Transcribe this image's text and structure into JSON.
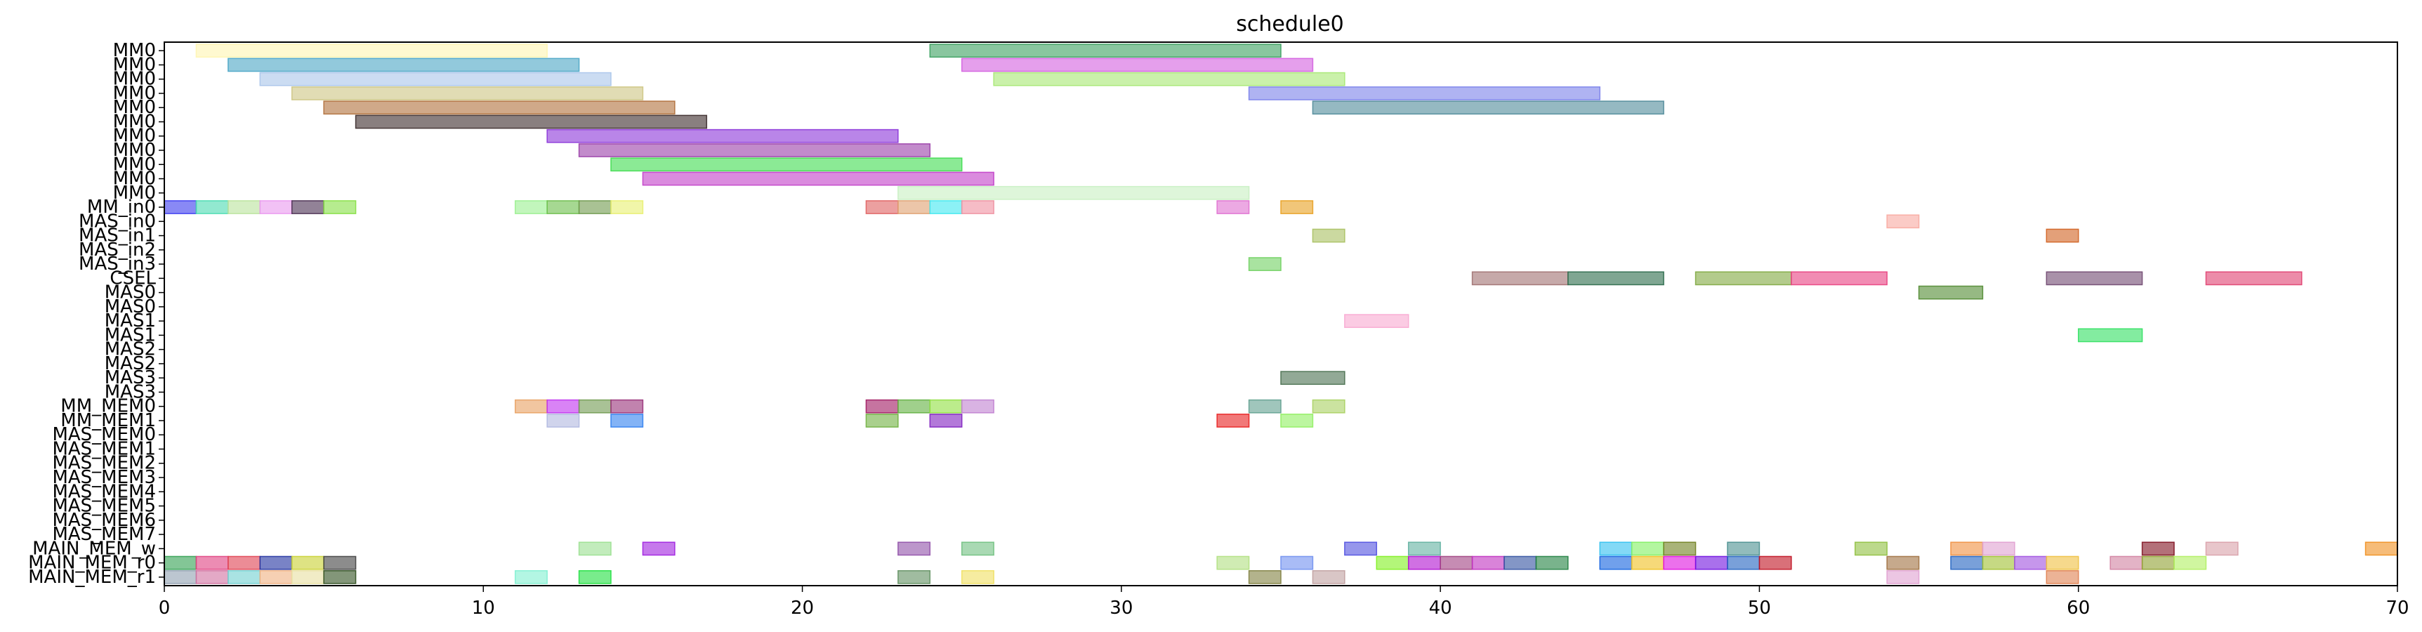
{
  "chart_data": {
    "type": "gantt",
    "title": "schedule0",
    "xlabel": "",
    "ylabel": "",
    "xlim": [
      0,
      70
    ],
    "xticks": [
      0,
      10,
      20,
      30,
      40,
      50,
      60,
      70
    ],
    "grid": false,
    "rows": [
      "MM0",
      "MM0",
      "MM0",
      "MM0",
      "MM0",
      "MM0",
      "MM0",
      "MM0",
      "MM0",
      "MM0",
      "MM0",
      "MM_in0",
      "MAS_in0",
      "MAS_in1",
      "MAS_in2",
      "MAS_in3",
      "CSEL",
      "MAS0",
      "MAS0",
      "MAS1",
      "MAS1",
      "MAS2",
      "MAS2",
      "MAS3",
      "MAS3",
      "MM_MEM0",
      "MM_MEM1",
      "MAS_MEM0",
      "MAS_MEM1",
      "MAS_MEM2",
      "MAS_MEM3",
      "MAS_MEM4",
      "MAS_MEM5",
      "MAS_MEM6",
      "MAS_MEM7",
      "MAIN_MEM_w",
      "MAIN_MEM_r0",
      "MAIN_MEM_r1"
    ],
    "tasks": [
      {
        "row": 0,
        "start": 1,
        "end": 12,
        "color": "#fff5b0"
      },
      {
        "row": 0,
        "start": 24,
        "end": 35,
        "color": "#3aa05f"
      },
      {
        "row": 1,
        "start": 2,
        "end": 13,
        "color": "#4aa5c5"
      },
      {
        "row": 1,
        "start": 25,
        "end": 36,
        "color": "#d35fe0"
      },
      {
        "row": 2,
        "start": 3,
        "end": 14,
        "color": "#a9c4ea"
      },
      {
        "row": 2,
        "start": 26,
        "end": 37,
        "color": "#a6e872"
      },
      {
        "row": 3,
        "start": 4,
        "end": 15,
        "color": "#cdc582"
      },
      {
        "row": 3,
        "start": 34,
        "end": 45,
        "color": "#7a81ea"
      },
      {
        "row": 4,
        "start": 5,
        "end": 16,
        "color": "#b06f3a"
      },
      {
        "row": 4,
        "start": 36,
        "end": 47,
        "color": "#4f8a99"
      },
      {
        "row": 5,
        "start": 6,
        "end": 17,
        "color": "#3a2a2a"
      },
      {
        "row": 6,
        "start": 12,
        "end": 23,
        "color": "#8a33d8"
      },
      {
        "row": 7,
        "start": 13,
        "end": 24,
        "color": "#9a3ea8"
      },
      {
        "row": 8,
        "start": 14,
        "end": 25,
        "color": "#3edc4e"
      },
      {
        "row": 9,
        "start": 15,
        "end": 26,
        "color": "#c13ec8"
      },
      {
        "row": 10,
        "start": 23,
        "end": 34,
        "color": "#c8f0c2"
      },
      {
        "row": 11,
        "start": 0,
        "end": 1,
        "color": "#3b3bef"
      },
      {
        "row": 11,
        "start": 1,
        "end": 2,
        "color": "#49dbb0"
      },
      {
        "row": 11,
        "start": 2,
        "end": 3,
        "color": "#b9e39b"
      },
      {
        "row": 11,
        "start": 3,
        "end": 4,
        "color": "#ea97ef"
      },
      {
        "row": 11,
        "start": 4,
        "end": 5,
        "color": "#4a2f52"
      },
      {
        "row": 11,
        "start": 5,
        "end": 6,
        "color": "#86e044"
      },
      {
        "row": 11,
        "start": 11,
        "end": 12,
        "color": "#9af08f"
      },
      {
        "row": 11,
        "start": 12,
        "end": 13,
        "color": "#6bbe4a"
      },
      {
        "row": 11,
        "start": 13,
        "end": 14,
        "color": "#6f9a4c"
      },
      {
        "row": 11,
        "start": 14,
        "end": 15,
        "color": "#e8f06f"
      },
      {
        "row": 11,
        "start": 22,
        "end": 23,
        "color": "#e06060"
      },
      {
        "row": 11,
        "start": 23,
        "end": 24,
        "color": "#e0a070"
      },
      {
        "row": 11,
        "start": 24,
        "end": 25,
        "color": "#40e8f0"
      },
      {
        "row": 11,
        "start": 25,
        "end": 26,
        "color": "#f090a0"
      },
      {
        "row": 11,
        "start": 33,
        "end": 34,
        "color": "#e070d0"
      },
      {
        "row": 11,
        "start": 35,
        "end": 36,
        "color": "#e8a020"
      },
      {
        "row": 12,
        "start": 54,
        "end": 55,
        "color": "#f8a8a0"
      },
      {
        "row": 13,
        "start": 36,
        "end": 37,
        "color": "#a8c060"
      },
      {
        "row": 13,
        "start": 59,
        "end": 60,
        "color": "#d06020"
      },
      {
        "row": 15,
        "start": 34,
        "end": 35,
        "color": "#70d060"
      },
      {
        "row": 16,
        "start": 41,
        "end": 44,
        "color": "#a07070"
      },
      {
        "row": 16,
        "start": 44,
        "end": 47,
        "color": "#2a6a4a"
      },
      {
        "row": 16,
        "start": 48,
        "end": 51,
        "color": "#80a840"
      },
      {
        "row": 16,
        "start": 51,
        "end": 54,
        "color": "#e84080"
      },
      {
        "row": 16,
        "start": 59,
        "end": 62,
        "color": "#704870"
      },
      {
        "row": 16,
        "start": 64,
        "end": 67,
        "color": "#e04070"
      },
      {
        "row": 17,
        "start": 55,
        "end": 57,
        "color": "#508a30"
      },
      {
        "row": 19,
        "start": 37,
        "end": 39,
        "color": "#f8a8d0"
      },
      {
        "row": 20,
        "start": 60,
        "end": 62,
        "color": "#30e060"
      },
      {
        "row": 23,
        "start": 35,
        "end": 37,
        "color": "#4a7050"
      },
      {
        "row": 25,
        "start": 11,
        "end": 12,
        "color": "#e8a060"
      },
      {
        "row": 25,
        "start": 12,
        "end": 13,
        "color": "#c030f0"
      },
      {
        "row": 25,
        "start": 13,
        "end": 14,
        "color": "#709a50"
      },
      {
        "row": 25,
        "start": 14,
        "end": 15,
        "color": "#983078"
      },
      {
        "row": 25,
        "start": 22,
        "end": 23,
        "color": "#a01860"
      },
      {
        "row": 25,
        "start": 23,
        "end": 24,
        "color": "#60b040"
      },
      {
        "row": 25,
        "start": 24,
        "end": 25,
        "color": "#90e040"
      },
      {
        "row": 25,
        "start": 25,
        "end": 26,
        "color": "#c080d0"
      },
      {
        "row": 25,
        "start": 34,
        "end": 35,
        "color": "#60a090"
      },
      {
        "row": 25,
        "start": 36,
        "end": 37,
        "color": "#a8d060"
      },
      {
        "row": 26,
        "start": 12,
        "end": 13,
        "color": "#b0b8e0"
      },
      {
        "row": 26,
        "start": 14,
        "end": 15,
        "color": "#3080f0"
      },
      {
        "row": 26,
        "start": 22,
        "end": 23,
        "color": "#70b040"
      },
      {
        "row": 26,
        "start": 24,
        "end": 25,
        "color": "#8020c0"
      },
      {
        "row": 26,
        "start": 33,
        "end": 34,
        "color": "#e82020"
      },
      {
        "row": 26,
        "start": 35,
        "end": 36,
        "color": "#90f060"
      },
      {
        "row": 35,
        "start": 13,
        "end": 14,
        "color": "#9ae090"
      },
      {
        "row": 35,
        "start": 15,
        "end": 16,
        "color": "#a020e0"
      },
      {
        "row": 35,
        "start": 23,
        "end": 24,
        "color": "#9050a8"
      },
      {
        "row": 35,
        "start": 25,
        "end": 26,
        "color": "#70c080"
      },
      {
        "row": 35,
        "start": 37,
        "end": 38,
        "color": "#5050e0"
      },
      {
        "row": 35,
        "start": 39,
        "end": 40,
        "color": "#60b0a0"
      },
      {
        "row": 35,
        "start": 45,
        "end": 46,
        "color": "#30c0f0"
      },
      {
        "row": 35,
        "start": 46,
        "end": 47,
        "color": "#80f060"
      },
      {
        "row": 35,
        "start": 47,
        "end": 48,
        "color": "#708020"
      },
      {
        "row": 35,
        "start": 49,
        "end": 50,
        "color": "#4a9090"
      },
      {
        "row": 35,
        "start": 53,
        "end": 54,
        "color": "#90c040"
      },
      {
        "row": 35,
        "start": 56,
        "end": 57,
        "color": "#f09040"
      },
      {
        "row": 35,
        "start": 57,
        "end": 58,
        "color": "#e0a0d0"
      },
      {
        "row": 35,
        "start": 62,
        "end": 63,
        "color": "#801020"
      },
      {
        "row": 35,
        "start": 64,
        "end": 65,
        "color": "#d8a0a8"
      },
      {
        "row": 35,
        "start": 69,
        "end": 70,
        "color": "#f09020"
      },
      {
        "row": 36,
        "start": 0,
        "end": 1,
        "color": "#30a050"
      },
      {
        "row": 36,
        "start": 1,
        "end": 2,
        "color": "#e04080"
      },
      {
        "row": 36,
        "start": 2,
        "end": 3,
        "color": "#e04050"
      },
      {
        "row": 36,
        "start": 3,
        "end": 4,
        "color": "#2030a0"
      },
      {
        "row": 36,
        "start": 4,
        "end": 5,
        "color": "#c8d030"
      },
      {
        "row": 36,
        "start": 5,
        "end": 6,
        "color": "#404040"
      },
      {
        "row": 36,
        "start": 33,
        "end": 34,
        "color": "#b0e080"
      },
      {
        "row": 36,
        "start": 35,
        "end": 36,
        "color": "#7090f0"
      },
      {
        "row": 36,
        "start": 38,
        "end": 39,
        "color": "#80f020"
      },
      {
        "row": 36,
        "start": 39,
        "end": 40,
        "color": "#b010d0"
      },
      {
        "row": 36,
        "start": 40,
        "end": 41,
        "color": "#a04080"
      },
      {
        "row": 36,
        "start": 41,
        "end": 42,
        "color": "#c030c0"
      },
      {
        "row": 36,
        "start": 42,
        "end": 43,
        "color": "#3050a0"
      },
      {
        "row": 36,
        "start": 43,
        "end": 44,
        "color": "#208040"
      },
      {
        "row": 36,
        "start": 45,
        "end": 46,
        "color": "#1060e0"
      },
      {
        "row": 36,
        "start": 46,
        "end": 47,
        "color": "#f0c020"
      },
      {
        "row": 36,
        "start": 47,
        "end": 48,
        "color": "#e010e0"
      },
      {
        "row": 36,
        "start": 48,
        "end": 49,
        "color": "#7010e0"
      },
      {
        "row": 36,
        "start": 49,
        "end": 50,
        "color": "#2060c0"
      },
      {
        "row": 36,
        "start": 50,
        "end": 51,
        "color": "#c01020"
      },
      {
        "row": 36,
        "start": 54,
        "end": 55,
        "color": "#a07040"
      },
      {
        "row": 36,
        "start": 56,
        "end": 57,
        "color": "#2060c0"
      },
      {
        "row": 36,
        "start": 57,
        "end": 58,
        "color": "#a0c030"
      },
      {
        "row": 36,
        "start": 58,
        "end": 59,
        "color": "#a050e0"
      },
      {
        "row": 36,
        "start": 59,
        "end": 60,
        "color": "#f0c040"
      },
      {
        "row": 36,
        "start": 61,
        "end": 62,
        "color": "#d080a0"
      },
      {
        "row": 36,
        "start": 62,
        "end": 63,
        "color": "#90a030"
      },
      {
        "row": 36,
        "start": 63,
        "end": 64,
        "color": "#b0f060"
      },
      {
        "row": 37,
        "start": 0,
        "end": 1,
        "color": "#90a0b0"
      },
      {
        "row": 37,
        "start": 1,
        "end": 2,
        "color": "#d070a0"
      },
      {
        "row": 37,
        "start": 2,
        "end": 3,
        "color": "#70d0d0"
      },
      {
        "row": 37,
        "start": 3,
        "end": 4,
        "color": "#f0b080"
      },
      {
        "row": 37,
        "start": 4,
        "end": 5,
        "color": "#e8e0a0"
      },
      {
        "row": 37,
        "start": 5,
        "end": 6,
        "color": "#305020"
      },
      {
        "row": 37,
        "start": 11,
        "end": 12,
        "color": "#80f0d0"
      },
      {
        "row": 37,
        "start": 13,
        "end": 14,
        "color": "#20e040"
      },
      {
        "row": 37,
        "start": 23,
        "end": 24,
        "color": "#609060"
      },
      {
        "row": 37,
        "start": 25,
        "end": 26,
        "color": "#f0e060"
      },
      {
        "row": 37,
        "start": 34,
        "end": 35,
        "color": "#808040"
      },
      {
        "row": 37,
        "start": 36,
        "end": 37,
        "color": "#c0a0a0"
      },
      {
        "row": 37,
        "start": 54,
        "end": 55,
        "color": "#e0a0d0"
      },
      {
        "row": 37,
        "start": 59,
        "end": 60,
        "color": "#e08050"
      }
    ]
  }
}
